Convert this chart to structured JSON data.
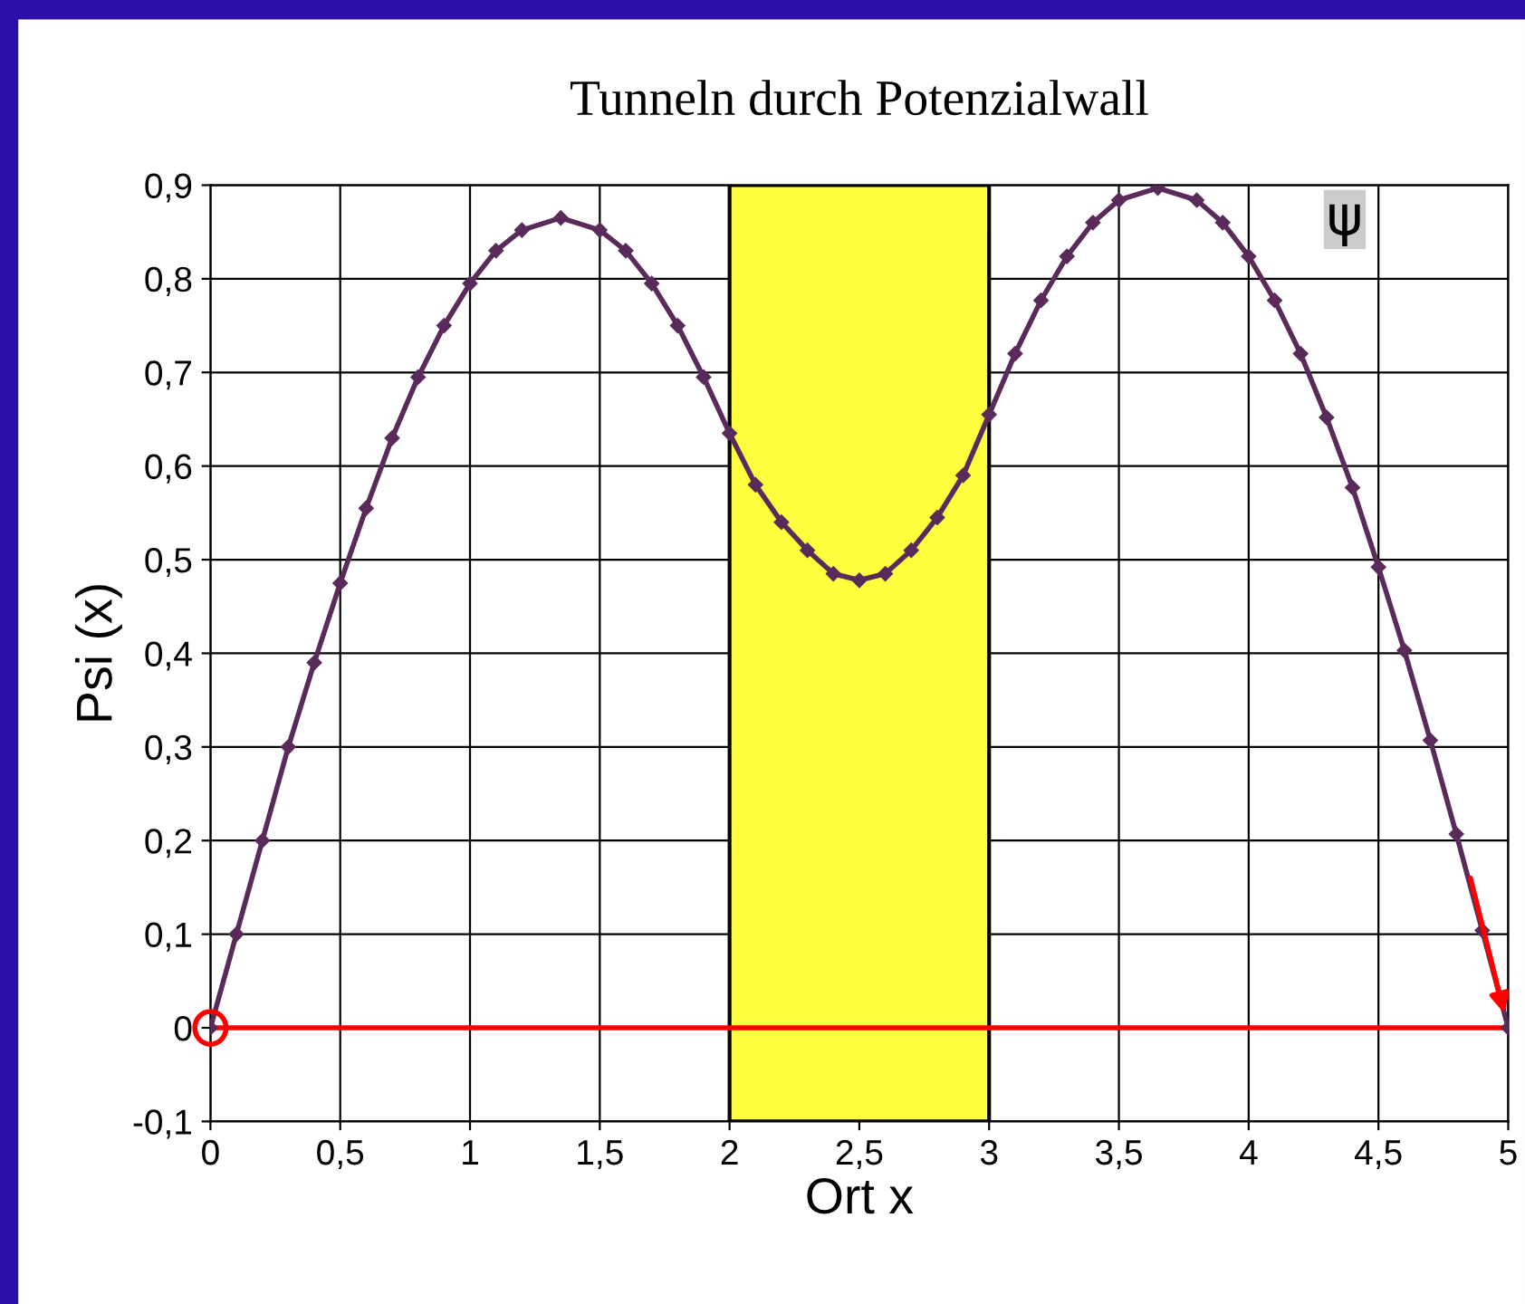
{
  "chart_data": {
    "type": "line",
    "title": "Tunneln durch Potenzialwall",
    "xlabel": "Ort x",
    "ylabel": "Psi (x)",
    "series": [
      {
        "name": "ψ",
        "color": "#5a2a5a",
        "x": [
          0,
          0.1,
          0.2,
          0.3,
          0.4,
          0.5,
          0.6,
          0.7,
          0.8,
          0.9,
          1.0,
          1.1,
          1.2,
          1.35,
          1.5,
          1.6,
          1.7,
          1.8,
          1.9,
          2.0,
          2.1,
          2.2,
          2.3,
          2.4,
          2.5,
          2.6,
          2.7,
          2.8,
          2.9,
          3.0,
          3.1,
          3.2,
          3.3,
          3.4,
          3.5,
          3.65,
          3.8,
          3.9,
          4.0,
          4.1,
          4.2,
          4.3,
          4.4,
          4.5,
          4.6,
          4.7,
          4.8,
          4.9,
          5.0
        ],
        "values": [
          0,
          0.1,
          0.2,
          0.3,
          0.39,
          0.475,
          0.555,
          0.63,
          0.695,
          0.75,
          0.795,
          0.83,
          0.852,
          0.865,
          0.852,
          0.83,
          0.795,
          0.75,
          0.695,
          0.635,
          0.58,
          0.54,
          0.51,
          0.485,
          0.478,
          0.485,
          0.51,
          0.545,
          0.59,
          0.655,
          0.72,
          0.777,
          0.824,
          0.86,
          0.884,
          0.897,
          0.884,
          0.86,
          0.824,
          0.777,
          0.72,
          0.652,
          0.577,
          0.492,
          0.403,
          0.307,
          0.207,
          0.104,
          0
        ]
      }
    ],
    "marker": "diamond",
    "line_style": "solid",
    "xlim": [
      0,
      5
    ],
    "xticks": [
      0,
      {
        "value": 0.5,
        "label": "0,5"
      },
      1,
      {
        "value": 1.5,
        "label": "1,5"
      },
      2,
      {
        "value": 2.5,
        "label": "2,5"
      },
      3,
      {
        "value": 3.5,
        "label": "3,5"
      },
      4,
      {
        "value": 4.5,
        "label": "4,5"
      },
      5
    ],
    "ylim": [
      -0.1,
      0.9
    ],
    "yticks": [
      {
        "value": -0.1,
        "label": "-0,1"
      },
      0,
      {
        "value": 0.1,
        "label": "0,1"
      },
      {
        "value": 0.2,
        "label": "0,2"
      },
      {
        "value": 0.3,
        "label": "0,3"
      },
      {
        "value": 0.4,
        "label": "0,4"
      },
      {
        "value": 0.5,
        "label": "0,5"
      },
      {
        "value": 0.6,
        "label": "0,6"
      },
      {
        "value": 0.7,
        "label": "0,7"
      },
      {
        "value": 0.8,
        "label": "0,8"
      },
      {
        "value": 0.9,
        "label": "0,9"
      }
    ],
    "bands": [
      {
        "axis": "x",
        "from": 2,
        "to": 3,
        "color": "#ffff40"
      }
    ],
    "ref_lines": [
      {
        "axis": "y",
        "value": 0,
        "color": "#ff0000",
        "line_style": "solid"
      }
    ],
    "grid": true,
    "legend": false
  }
}
